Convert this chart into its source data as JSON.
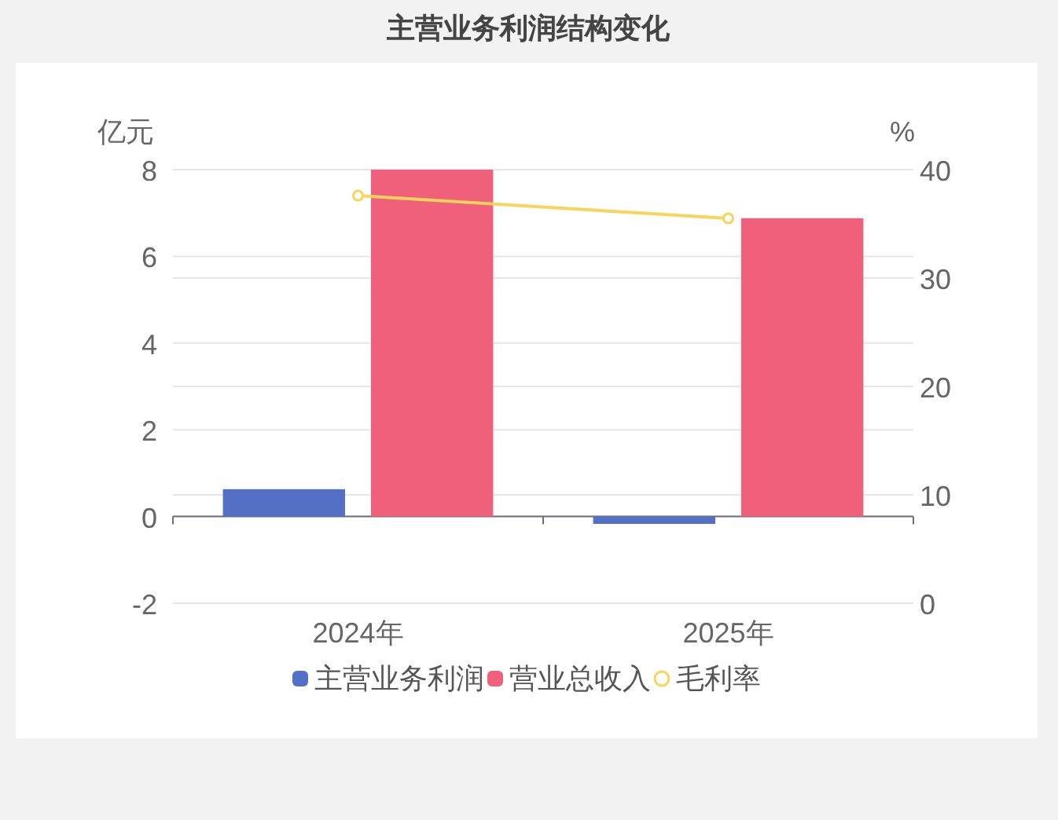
{
  "chart_data": {
    "type": "bar",
    "title": "主营业务利润结构变化",
    "categories": [
      "2024年",
      "2025年"
    ],
    "series": [
      {
        "name": "主营业务利润",
        "color": "#5470c6",
        "values": [
          0.63,
          -0.17
        ]
      },
      {
        "name": "营业总收入",
        "color": "#f0607a",
        "values": [
          8.0,
          6.88
        ]
      },
      {
        "name": "毛利率",
        "type": "line",
        "axis": "y2",
        "color": "#fad35a",
        "marker": "circle",
        "values": [
          37.6,
          35.5
        ]
      }
    ],
    "ylabel": "亿元",
    "y2label": "%",
    "ylim": [
      -2,
      8
    ],
    "yticks": [
      -2,
      0,
      2,
      4,
      6,
      8
    ],
    "y2lim": [
      0,
      40
    ],
    "y2ticks": [
      0,
      10,
      20,
      30,
      40
    ],
    "grid": true,
    "legend": "bottom"
  }
}
